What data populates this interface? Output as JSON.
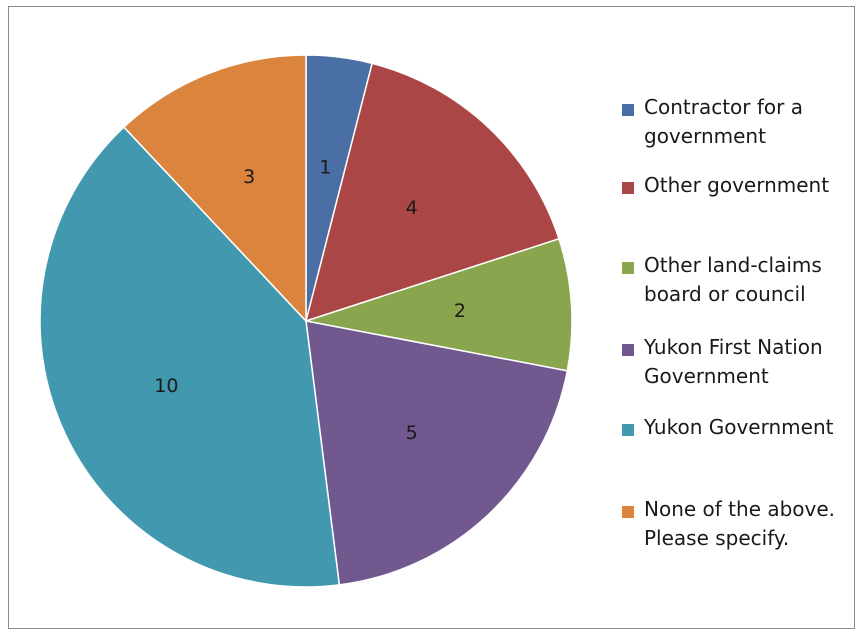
{
  "chart_data": {
    "type": "pie",
    "title": "",
    "legend_position": "right",
    "slices": [
      {
        "label": "Contractor for a government",
        "value": 1,
        "color": "#4a6fa5"
      },
      {
        "label": "Other government",
        "value": 4,
        "color": "#aa4645"
      },
      {
        "label": "Other land-claims board or council",
        "value": 2,
        "color": "#89a54e"
      },
      {
        "label": "Yukon First Nation Government",
        "value": 5,
        "color": "#71588f"
      },
      {
        "label": "Yukon Government",
        "value": 10,
        "color": "#4198af"
      },
      {
        "label": "None of the above. Please specify.",
        "value": 3,
        "color": "#db843d"
      }
    ]
  }
}
